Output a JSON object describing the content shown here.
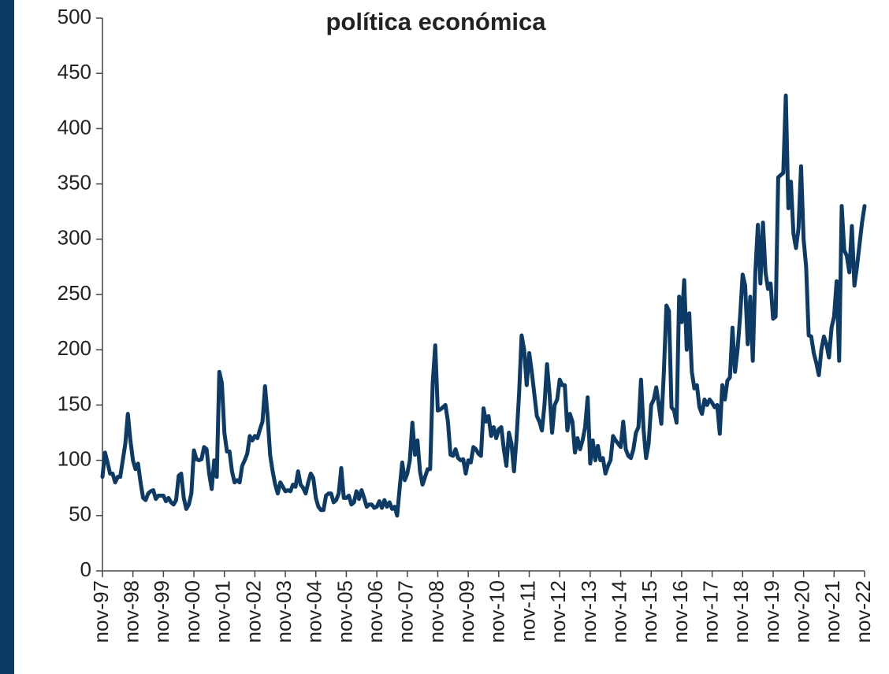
{
  "chart_data": {
    "type": "line",
    "title": "política económica",
    "categories": [
      "nov-97",
      null,
      null,
      null,
      null,
      null,
      null,
      null,
      null,
      null,
      null,
      null,
      "nov-98",
      null,
      null,
      null,
      null,
      null,
      null,
      null,
      null,
      null,
      null,
      null,
      "nov-99",
      null,
      null,
      null,
      null,
      null,
      null,
      null,
      null,
      null,
      null,
      null,
      "nov-00",
      null,
      null,
      null,
      null,
      null,
      null,
      null,
      null,
      null,
      null,
      null,
      "nov-01",
      null,
      null,
      null,
      null,
      null,
      null,
      null,
      null,
      null,
      null,
      null,
      "nov-02",
      null,
      null,
      null,
      null,
      null,
      null,
      null,
      null,
      null,
      null,
      null,
      "nov-03",
      null,
      null,
      null,
      null,
      null,
      null,
      null,
      null,
      null,
      null,
      null,
      "nov-04",
      null,
      null,
      null,
      null,
      null,
      null,
      null,
      null,
      null,
      null,
      null,
      "nov-05",
      null,
      null,
      null,
      null,
      null,
      null,
      null,
      null,
      null,
      null,
      null,
      "nov-06",
      null,
      null,
      null,
      null,
      null,
      null,
      null,
      null,
      null,
      null,
      null,
      "nov-07",
      null,
      null,
      null,
      null,
      null,
      null,
      null,
      null,
      null,
      null,
      null,
      "nov-08",
      null,
      null,
      null,
      null,
      null,
      null,
      null,
      null,
      null,
      null,
      null,
      "nov-09",
      null,
      null,
      null,
      null,
      null,
      null,
      null,
      null,
      null,
      null,
      null,
      "nov-10",
      null,
      null,
      null,
      null,
      null,
      null,
      null,
      null,
      null,
      null,
      null,
      "nov-11",
      null,
      null,
      null,
      null,
      null,
      null,
      null,
      null,
      null,
      null,
      null,
      "nov-12",
      null,
      null,
      null,
      null,
      null,
      null,
      null,
      null,
      null,
      null,
      null,
      "nov-13",
      null,
      null,
      null,
      null,
      null,
      null,
      null,
      null,
      null,
      null,
      null,
      "nov-14",
      null,
      null,
      null,
      null,
      null,
      null,
      null,
      null,
      null,
      null,
      null,
      "nov-15",
      null,
      null,
      null,
      null,
      null,
      null,
      null,
      null,
      null,
      null,
      null,
      "nov-16",
      null,
      null,
      null,
      null,
      null,
      null,
      null,
      null,
      null,
      null,
      null,
      "nov-17",
      null,
      null,
      null,
      null,
      null,
      null,
      null,
      null,
      null,
      null,
      null,
      "nov-18",
      null,
      null,
      null,
      null,
      null,
      null,
      null,
      null,
      null,
      null,
      null,
      "nov-19",
      null,
      null,
      null,
      null,
      null,
      null,
      null,
      null,
      null,
      null,
      null,
      "nov-20",
      null,
      null,
      null,
      null,
      null,
      null,
      null,
      null,
      null,
      null,
      null,
      "nov-21",
      null,
      null,
      null,
      null,
      null,
      null,
      null,
      null,
      null,
      null,
      null,
      "nov-22"
    ],
    "values": [
      85,
      107,
      98,
      88,
      88,
      80,
      85,
      85,
      100,
      115,
      142,
      118,
      100,
      92,
      97,
      80,
      66,
      64,
      70,
      72,
      73,
      65,
      68,
      68,
      68,
      63,
      66,
      62,
      60,
      64,
      86,
      88,
      66,
      56,
      60,
      70,
      109,
      101,
      100,
      101,
      112,
      110,
      88,
      74,
      100,
      85,
      180,
      170,
      125,
      108,
      108,
      90,
      80,
      82,
      80,
      95,
      100,
      106,
      122,
      118,
      122,
      120,
      128,
      135,
      167,
      140,
      105,
      90,
      78,
      70,
      80,
      76,
      72,
      73,
      72,
      78,
      76,
      90,
      78,
      75,
      70,
      80,
      88,
      84,
      66,
      58,
      55,
      55,
      68,
      70,
      70,
      62,
      64,
      70,
      93,
      66,
      66,
      68,
      60,
      62,
      72,
      65,
      73,
      66,
      58,
      60,
      60,
      57,
      58,
      63,
      57,
      64,
      58,
      62,
      56,
      58,
      50,
      75,
      98,
      82,
      88,
      100,
      134,
      105,
      118,
      90,
      78,
      85,
      92,
      92,
      170,
      204,
      145,
      146,
      148,
      150,
      135,
      105,
      104,
      110,
      102,
      100,
      101,
      88,
      100,
      98,
      112,
      110,
      106,
      104,
      147,
      135,
      140,
      122,
      130,
      120,
      128,
      130,
      110,
      95,
      125,
      115,
      90,
      120,
      160,
      213,
      200,
      168,
      197,
      180,
      160,
      140,
      135,
      127,
      150,
      187,
      160,
      125,
      150,
      155,
      173,
      168,
      168,
      127,
      142,
      135,
      107,
      120,
      110,
      118,
      130,
      157,
      97,
      118,
      100,
      113,
      100,
      102,
      88,
      95,
      100,
      122,
      118,
      115,
      112,
      135,
      110,
      104,
      102,
      110,
      125,
      130,
      173,
      128,
      102,
      115,
      150,
      155,
      166,
      150,
      133,
      180,
      240,
      235,
      148,
      145,
      134,
      248,
      225,
      263,
      200,
      233,
      180,
      165,
      168,
      148,
      142,
      155,
      150,
      155,
      152,
      148,
      150,
      124,
      168,
      155,
      172,
      175,
      220,
      180,
      200,
      230,
      268,
      258,
      205,
      248,
      190,
      270,
      313,
      260,
      315,
      270,
      255,
      260,
      228,
      230,
      356,
      358,
      360,
      430,
      328,
      352,
      305,
      292,
      310,
      366,
      300,
      275,
      213,
      212,
      197,
      188,
      177,
      200,
      212,
      205,
      193,
      220,
      230,
      262,
      190,
      330,
      290,
      285,
      270,
      312,
      258,
      275,
      295,
      315,
      330
    ],
    "color": "#0d3b66",
    "ylim": [
      0,
      500
    ],
    "yticks": [
      0,
      50,
      100,
      150,
      200,
      250,
      300,
      350,
      400,
      450,
      500
    ],
    "grid": false
  }
}
